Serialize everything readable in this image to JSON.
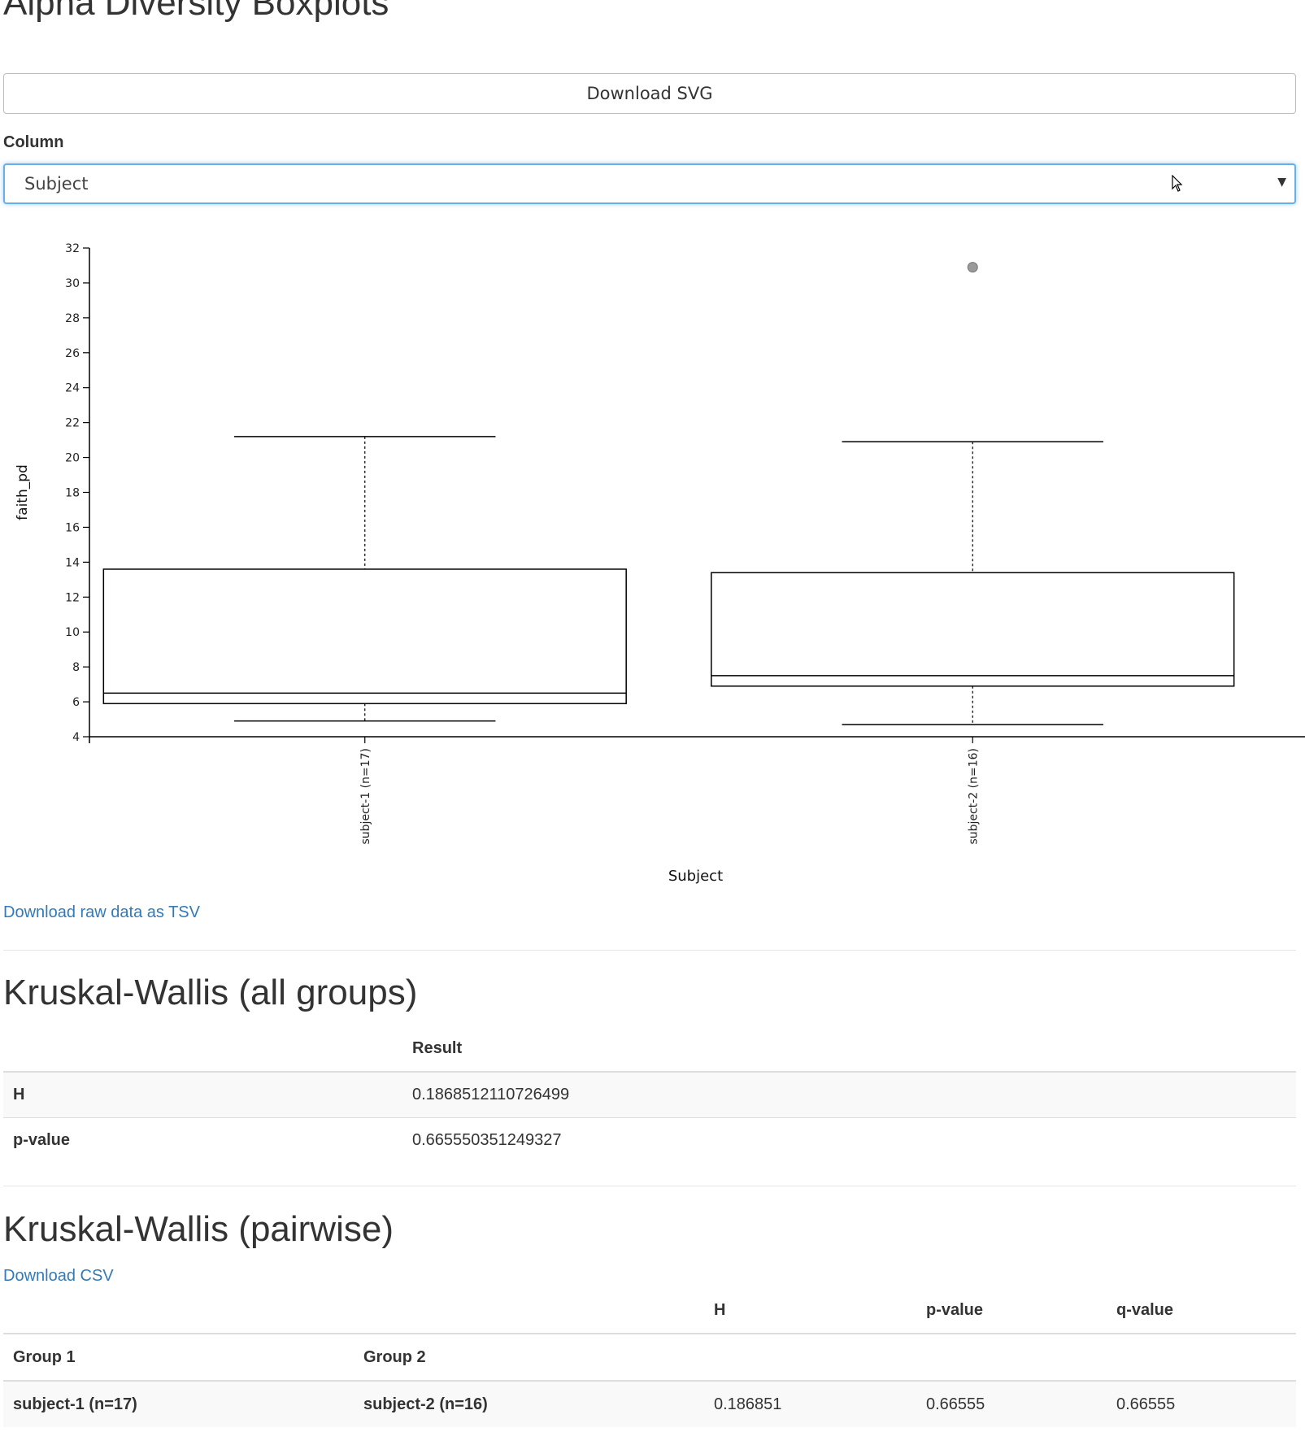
{
  "page": {
    "title": "Alpha Diversity Boxplots"
  },
  "controls": {
    "download_svg_label": "Download SVG",
    "column_label": "Column",
    "column_selected": "Subject"
  },
  "chart_data": {
    "type": "boxplot",
    "ylabel": "faith_pd",
    "xlabel": "Subject",
    "ylim": [
      4,
      32
    ],
    "yticks": [
      4,
      6,
      8,
      10,
      12,
      14,
      16,
      18,
      20,
      22,
      24,
      26,
      28,
      30,
      32
    ],
    "groups": [
      {
        "label": "subject-1 (n=17)",
        "whisker_low": 4.9,
        "q1": 5.9,
        "median": 6.5,
        "q3": 13.6,
        "whisker_high": 21.2,
        "outliers": []
      },
      {
        "label": "subject-2 (n=16)",
        "whisker_low": 4.7,
        "q1": 6.9,
        "median": 7.5,
        "q3": 13.4,
        "whisker_high": 20.9,
        "outliers": [
          30.9
        ]
      }
    ]
  },
  "links": {
    "download_tsv": "Download raw data as TSV",
    "download_csv": "Download CSV"
  },
  "kw_all": {
    "heading": "Kruskal-Wallis (all groups)",
    "column_header": "Result",
    "rows": [
      {
        "name": "H",
        "value": "0.1868512110726499"
      },
      {
        "name": "p-value",
        "value": "0.665550351249327"
      }
    ]
  },
  "kw_pairwise": {
    "heading": "Kruskal-Wallis (pairwise)",
    "headers": {
      "h": "H",
      "p": "p-value",
      "q": "q-value",
      "group1": "Group 1",
      "group2": "Group 2"
    },
    "rows": [
      {
        "group1": "subject-1 (n=17)",
        "group2": "subject-2 (n=16)",
        "h": "0.186851",
        "p": "0.66555",
        "q": "0.66555"
      }
    ]
  }
}
